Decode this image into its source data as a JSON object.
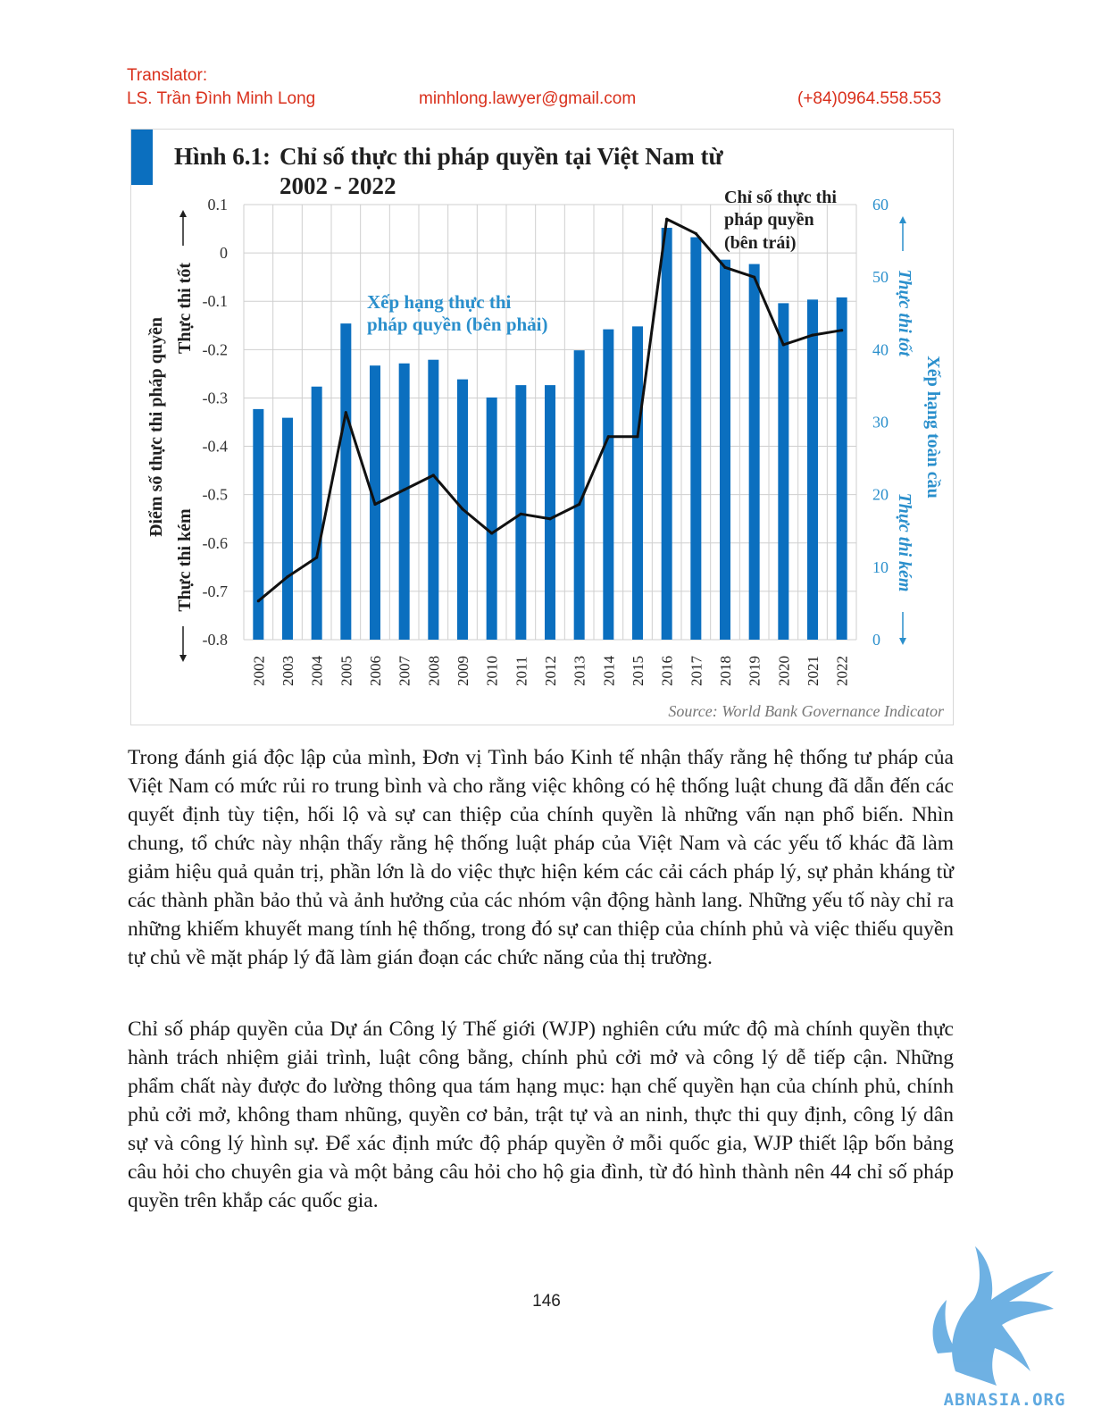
{
  "header": {
    "translator_label": "Translator:",
    "translator_name": "LS. Trần Đình Minh Long",
    "email": "minhlong.lawyer@gmail.com",
    "phone": "(+84)0964.558.553",
    "color": "#d9301c"
  },
  "chart_data": {
    "type": "bar+line",
    "title_prefix": "Hình 6.1:",
    "title_line1": "Chỉ số thực thi pháp quyền tại Việt Nam từ",
    "title_line2": "2002 - 2022",
    "y_left_label": "Điểm số thực thi pháp quyền",
    "y_left_top_label": "Thực thi tốt",
    "y_left_bottom_label": "Thực thi kém",
    "y_right_label": "Xếp hạng toàn cầu",
    "y_right_top_label": "Thực thi tốt",
    "y_right_bottom_label": "Thực thi kém",
    "left_ylim": [
      -0.8,
      0.1
    ],
    "left_ticks": [
      "0.1",
      "0",
      "-0.1",
      "-0.2",
      "-0.3",
      "-0.4",
      "-0.5",
      "-0.6",
      "-0.7",
      "-0.8"
    ],
    "right_ylim": [
      0,
      60
    ],
    "right_ticks": [
      "60",
      "50",
      "40",
      "30",
      "20",
      "10",
      "0"
    ],
    "categories": [
      "2002",
      "2003",
      "2004",
      "2005",
      "2006",
      "2007",
      "2008",
      "2009",
      "2010",
      "2011",
      "2012",
      "2013",
      "2014",
      "2015",
      "2016",
      "2017",
      "2018",
      "2019",
      "2020",
      "2021",
      "2022"
    ],
    "series": [
      {
        "name": "Xếp hạng thực thi pháp quyền (bên phải)",
        "name_line1": "Xếp hạng thực thi",
        "name_line2": "pháp quyền (bên phải)",
        "type": "bar",
        "axis": "right",
        "color": "#0b6fbf",
        "values": [
          31.8,
          30.6,
          34.9,
          43.6,
          37.8,
          38.1,
          38.6,
          35.9,
          33.4,
          35.1,
          35.1,
          39.9,
          42.8,
          43.2,
          56.8,
          55.5,
          52.4,
          51.8,
          46.4,
          46.9,
          47.2
        ]
      },
      {
        "name": "Chỉ số thực thi pháp quyền (bên trái)",
        "name_line1": "Chỉ số thực thi",
        "name_line2": "pháp quyền",
        "name_line3": "(bên trái)",
        "type": "line",
        "axis": "left",
        "color": "#111111",
        "values": [
          -0.72,
          -0.67,
          -0.63,
          -0.33,
          -0.52,
          -0.49,
          -0.46,
          -0.53,
          -0.58,
          -0.54,
          -0.55,
          -0.52,
          -0.38,
          -0.38,
          0.07,
          0.04,
          -0.03,
          -0.05,
          -0.19,
          -0.17,
          -0.16
        ]
      }
    ],
    "source": "Source: World Bank Governance Indicator",
    "grid": true,
    "colors": {
      "title_bar": "#0b6fbf",
      "right_axis": "#2a8fcc",
      "grid": "#cfcfcf"
    }
  },
  "paragraphs": [
    "Trong đánh giá độc lập của mình, Đơn vị Tình báo Kinh tế nhận thấy rằng hệ thống tư pháp của Việt Nam có mức rủi ro trung bình và cho rằng việc không có hệ thống luật chung đã dẫn đến các quyết định tùy tiện, hối lộ và sự can thiệp của chính quyền là những vấn nạn phổ biến. Nhìn chung, tổ chức này nhận thấy rằng hệ thống luật pháp của Việt Nam và các yếu tố khác đã làm giảm hiệu quả quản trị, phần lớn là do việc thực hiện kém các cải cách pháp lý, sự phản kháng từ các thành phần bảo thủ và ảnh hưởng của các nhóm vận động hành lang. Những yếu tố này chỉ ra những khiếm khuyết mang tính hệ thống, trong đó sự can thiệp của chính phủ và việc thiếu quyền tự chủ về mặt pháp lý đã làm gián đoạn các chức năng của thị trường.",
    "Chỉ số pháp quyền của Dự án Công lý Thế giới (WJP) nghiên cứu mức độ mà chính quyền thực hành trách nhiệm giải trình, luật công bằng, chính phủ cởi mở và công lý dễ tiếp cận. Những phẩm chất này được đo lường thông qua tám hạng mục: hạn chế quyền hạn của chính phủ, chính phủ cởi mở, không tham nhũng, quyền cơ bản, trật tự và an ninh, thực thi quy định, công lý dân sự và công lý hình sự. Để xác định mức độ pháp quyền ở mỗi quốc gia, WJP thiết lập bốn bảng câu hỏi cho chuyên gia và một bảng câu hỏi cho hộ gia đình, từ đó hình thành nên 44 chỉ số pháp quyền trên khắp các quốc gia."
  ],
  "page_number": "146",
  "watermark": {
    "text": "ABNASIA.ORG",
    "icon": "griffin-logo-icon",
    "color": "#5fa9e0"
  }
}
